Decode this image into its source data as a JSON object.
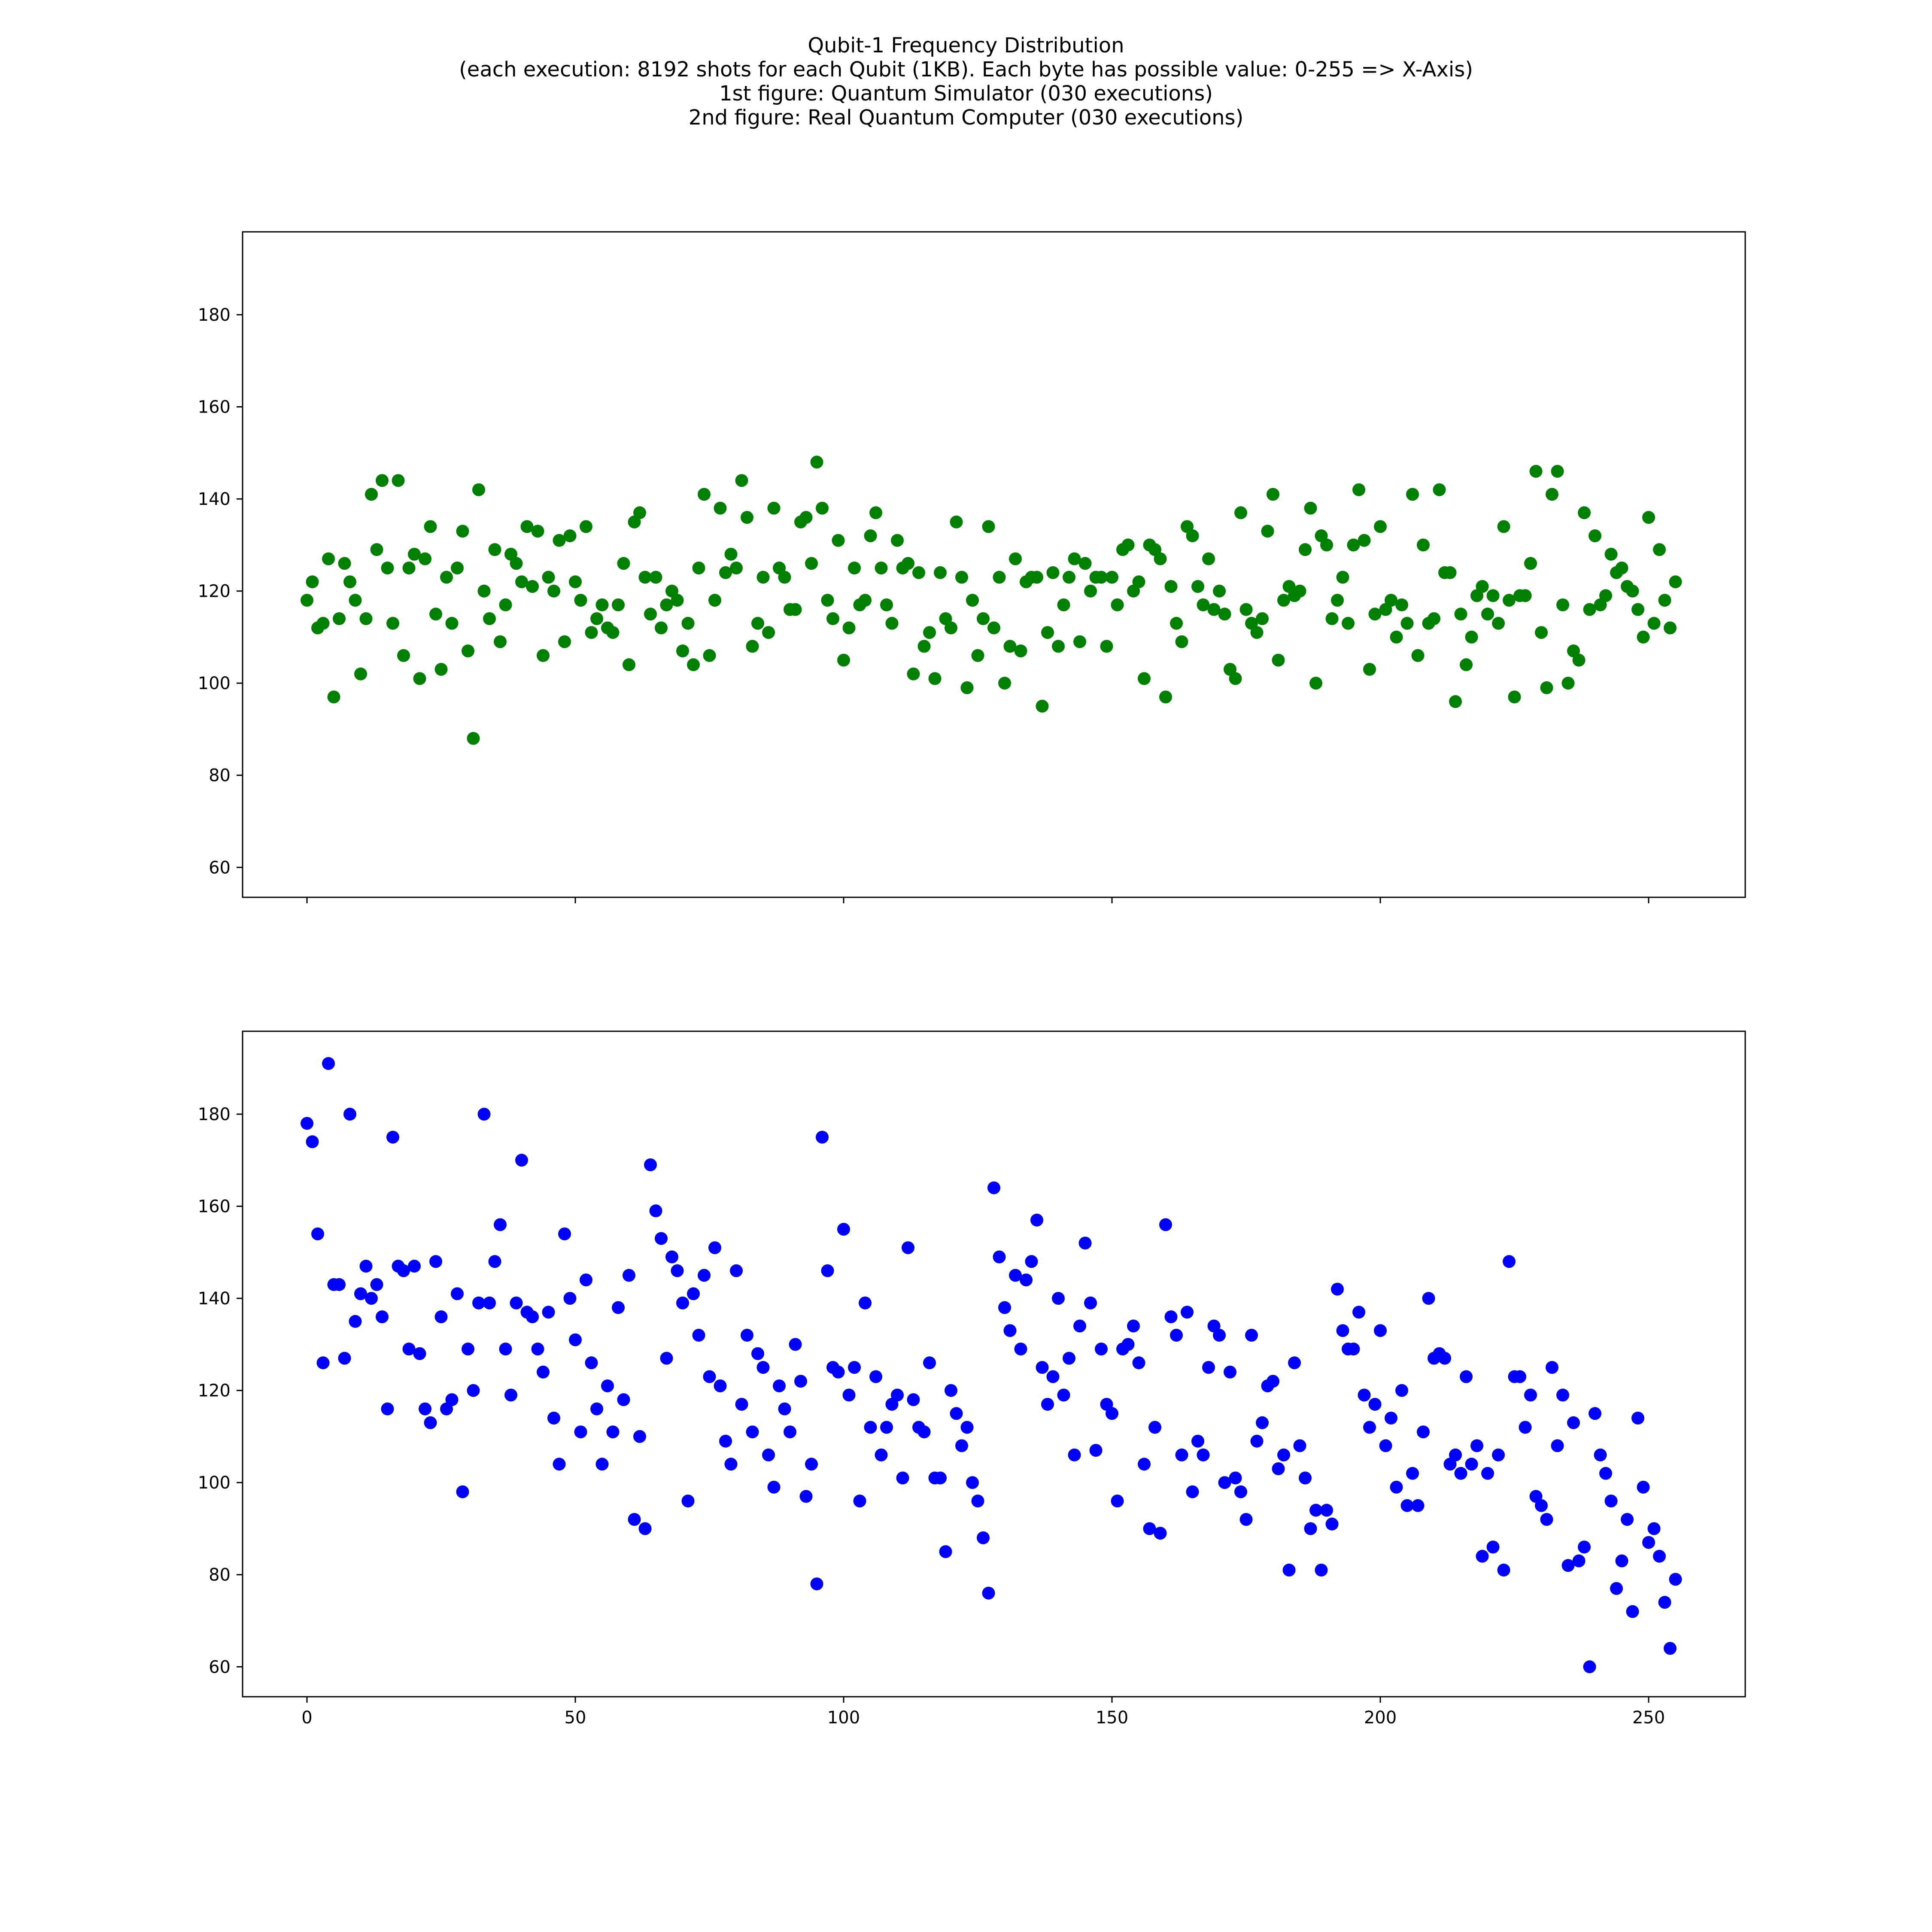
{
  "title_lines": [
    "Qubit-1 Frequency Distribution",
    "(each execution: 8192 shots for each Qubit (1KB). Each byte has possible value: 0-255 => X-Axis)",
    "1st figure: Quantum Simulator (030 executions)",
    "2nd figure: Real Quantum Computer (030 executions)"
  ],
  "chart_data": [
    {
      "type": "scatter",
      "title": "",
      "xlabel": "",
      "ylabel": "",
      "xlim": [
        -12,
        268
      ],
      "ylim": [
        53.5,
        198
      ],
      "xticks": [
        0,
        50,
        100,
        150,
        200,
        250
      ],
      "show_xtick_labels": false,
      "yticks": [
        60,
        80,
        100,
        120,
        140,
        160,
        180
      ],
      "grid": false,
      "color": "#008000",
      "x_start": 0,
      "y": [
        118,
        122,
        112,
        113,
        127,
        97,
        114,
        126,
        122,
        118,
        102,
        114,
        141,
        129,
        144,
        125,
        113,
        144,
        106,
        125,
        128,
        101,
        127,
        134,
        115,
        103,
        123,
        113,
        125,
        133,
        107,
        88,
        142,
        120,
        114,
        129,
        109,
        117,
        128,
        126,
        122,
        134,
        121,
        133,
        106,
        123,
        120,
        131,
        109,
        132,
        122,
        118,
        134,
        111,
        114,
        117,
        112,
        111,
        117,
        126,
        104,
        135,
        137,
        123,
        115,
        123,
        112,
        117,
        120,
        118,
        107,
        113,
        104,
        125,
        141,
        106,
        118,
        138,
        124,
        128,
        125,
        144,
        136,
        108,
        113,
        123,
        111,
        138,
        125,
        123,
        116,
        116,
        135,
        136,
        126,
        148,
        138,
        118,
        114,
        131,
        105,
        112,
        125,
        117,
        118,
        132,
        137,
        125,
        117,
        113,
        131,
        125,
        126,
        102,
        124,
        108,
        111,
        101,
        124,
        114,
        112,
        135,
        123,
        99,
        118,
        106,
        114,
        134,
        112,
        123,
        100,
        108,
        127,
        107,
        122,
        123,
        123,
        95,
        111,
        124,
        108,
        117,
        123,
        127,
        109,
        126,
        120,
        123,
        123,
        108,
        123,
        117,
        129,
        130,
        120,
        122,
        101,
        130,
        129,
        127,
        97,
        121,
        113,
        109,
        134,
        132,
        121,
        117,
        127,
        116,
        120,
        115,
        103,
        101,
        137,
        116,
        113,
        111,
        114,
        133,
        141,
        105,
        118,
        121,
        119,
        120,
        129,
        138,
        100,
        132,
        130,
        114,
        118,
        123,
        113,
        130,
        142,
        131,
        103,
        115,
        134,
        116,
        118,
        110,
        117,
        113,
        141,
        106,
        130,
        113,
        114,
        142,
        124,
        124,
        96,
        115,
        104,
        110,
        119,
        121,
        115,
        119,
        113,
        134,
        118,
        97,
        119,
        119,
        126,
        146,
        111,
        99,
        141,
        146,
        117,
        100,
        107,
        105,
        137,
        116,
        132,
        117,
        119,
        128,
        124,
        125,
        121,
        120,
        116,
        110,
        136,
        113,
        129,
        118,
        112,
        122
      ]
    },
    {
      "type": "scatter",
      "title": "",
      "xlabel": "",
      "ylabel": "",
      "xlim": [
        -12,
        268
      ],
      "ylim": [
        53.5,
        198
      ],
      "xticks": [
        0,
        50,
        100,
        150,
        200,
        250
      ],
      "show_xtick_labels": true,
      "yticks": [
        60,
        80,
        100,
        120,
        140,
        160,
        180
      ],
      "grid": false,
      "color": "#0000ff",
      "x_start": 0,
      "y": [
        178,
        174,
        154,
        126,
        191,
        143,
        143,
        127,
        180,
        135,
        141,
        147,
        140,
        143,
        136,
        116,
        175,
        147,
        146,
        129,
        147,
        128,
        116,
        113,
        148,
        136,
        116,
        118,
        141,
        98,
        129,
        120,
        139,
        180,
        139,
        148,
        156,
        129,
        119,
        139,
        170,
        137,
        136,
        129,
        124,
        137,
        114,
        104,
        154,
        140,
        131,
        111,
        144,
        126,
        116,
        104,
        121,
        111,
        138,
        118,
        145,
        92,
        110,
        90,
        169,
        159,
        153,
        127,
        149,
        146,
        139,
        96,
        141,
        132,
        145,
        123,
        151,
        121,
        109,
        104,
        146,
        117,
        132,
        111,
        128,
        125,
        106,
        99,
        121,
        116,
        111,
        130,
        122,
        97,
        104,
        78,
        175,
        146,
        125,
        124,
        155,
        119,
        125,
        96,
        139,
        112,
        123,
        106,
        112,
        117,
        119,
        101,
        151,
        118,
        112,
        111,
        126,
        101,
        101,
        85,
        120,
        115,
        108,
        112,
        100,
        96,
        88,
        76,
        164,
        149,
        138,
        133,
        145,
        129,
        144,
        148,
        157,
        125,
        117,
        123,
        140,
        119,
        127,
        106,
        134,
        152,
        139,
        107,
        129,
        117,
        115,
        96,
        129,
        130,
        134,
        126,
        104,
        90,
        112,
        89,
        156,
        136,
        132,
        106,
        137,
        98,
        109,
        106,
        125,
        134,
        132,
        100,
        124,
        101,
        98,
        92,
        132,
        109,
        113,
        121,
        122,
        103,
        106,
        81,
        126,
        108,
        101,
        90,
        94,
        81,
        94,
        91,
        142,
        133,
        129,
        129,
        137,
        119,
        112,
        117,
        133,
        108,
        114,
        99,
        120,
        95,
        102,
        95,
        111,
        140,
        127,
        128,
        127,
        104,
        106,
        102,
        123,
        104,
        108,
        84,
        102,
        86,
        106,
        81,
        148,
        123,
        123,
        112,
        119,
        97,
        95,
        92,
        125,
        108,
        119,
        82,
        113,
        83,
        86,
        60,
        115,
        106,
        102,
        96,
        77,
        83,
        92,
        72,
        114,
        99,
        87,
        90,
        84,
        74,
        64,
        79
      ]
    }
  ]
}
